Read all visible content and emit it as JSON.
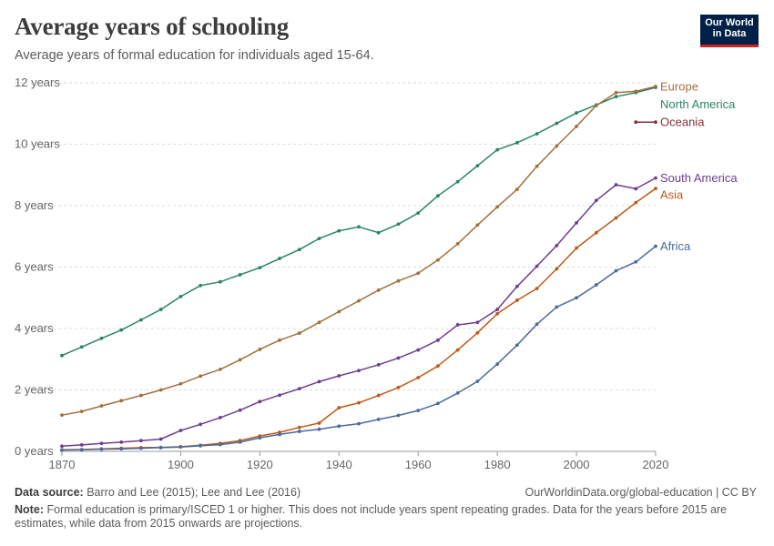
{
  "header": {
    "title": "Average years of schooling",
    "subtitle": "Average years of formal education for individuals aged 15-64."
  },
  "logo": {
    "line1": "Our World",
    "line2": "in Data"
  },
  "footer": {
    "source_label": "Data source:",
    "source_text": "Barro and Lee (2015); Lee and Lee (2016)",
    "url": "OurWorldinData.org/global-education | CC BY",
    "note_label": "Note:",
    "note_text": "Formal education is primary/ISCED 1 or higher. This does not include years spent repeating grades. Data for the years before 2015 are estimates, while data from 2015 onwards are projections."
  },
  "colors": {
    "europe": "#a2703c",
    "north_america": "#2b8465",
    "oceania": "#883039",
    "south_america": "#6d3e91",
    "asia": "#c05917",
    "africa": "#4c6a9c",
    "grid": "#dddddd",
    "axis": "#999999"
  },
  "chart_data": {
    "type": "line",
    "title": "Average years of schooling",
    "xlabel": "",
    "ylabel": "",
    "xlim": [
      1870,
      2020
    ],
    "ylim": [
      0,
      12
    ],
    "x_ticks": [
      1870,
      1900,
      1920,
      1940,
      1960,
      1980,
      2000,
      2020
    ],
    "y_ticks": [
      {
        "value": 0,
        "label": "0 years"
      },
      {
        "value": 2,
        "label": "2 years"
      },
      {
        "value": 4,
        "label": "4 years"
      },
      {
        "value": 6,
        "label": "6 years"
      },
      {
        "value": 8,
        "label": "8 years"
      },
      {
        "value": 10,
        "label": "10 years"
      },
      {
        "value": 12,
        "label": "12 years"
      }
    ],
    "grid": "horizontal dashed",
    "legend": "right, labels at line ends",
    "series": [
      {
        "name": "North America",
        "color_key": "north_america",
        "x": [
          1870,
          1875,
          1880,
          1885,
          1890,
          1895,
          1900,
          1905,
          1910,
          1915,
          1920,
          1925,
          1930,
          1935,
          1940,
          1945,
          1950,
          1955,
          1960,
          1965,
          1970,
          1975,
          1980,
          1985,
          1990,
          1995,
          2000,
          2005,
          2010,
          2015,
          2020
        ],
        "y": [
          3.12,
          3.4,
          3.68,
          3.95,
          4.28,
          4.62,
          5.04,
          5.4,
          5.52,
          5.75,
          5.98,
          6.28,
          6.57,
          6.93,
          7.18,
          7.31,
          7.12,
          7.4,
          7.76,
          8.32,
          8.78,
          9.3,
          9.82,
          10.05,
          10.34,
          10.68,
          11.02,
          11.28,
          11.55,
          11.68,
          11.85
        ]
      },
      {
        "name": "Europe",
        "color_key": "europe",
        "x": [
          1870,
          1875,
          1880,
          1885,
          1890,
          1895,
          1900,
          1905,
          1910,
          1915,
          1920,
          1925,
          1930,
          1935,
          1940,
          1945,
          1950,
          1955,
          1960,
          1965,
          1970,
          1975,
          1980,
          1985,
          1990,
          1995,
          2000,
          2005,
          2010,
          2015,
          2020
        ],
        "y": [
          1.18,
          1.3,
          1.48,
          1.65,
          1.82,
          2.0,
          2.2,
          2.45,
          2.67,
          2.98,
          3.32,
          3.62,
          3.85,
          4.2,
          4.55,
          4.9,
          5.25,
          5.55,
          5.8,
          6.23,
          6.76,
          7.37,
          7.96,
          8.53,
          9.28,
          9.94,
          10.58,
          11.26,
          11.68,
          11.72,
          11.88
        ]
      },
      {
        "name": "Oceania",
        "color_key": "oceania",
        "x": [
          2015,
          2020
        ],
        "y": [
          10.72,
          10.72
        ]
      },
      {
        "name": "South America",
        "color_key": "south_america",
        "x": [
          1870,
          1875,
          1880,
          1885,
          1890,
          1895,
          1900,
          1905,
          1910,
          1915,
          1920,
          1925,
          1930,
          1935,
          1940,
          1945,
          1950,
          1955,
          1960,
          1965,
          1970,
          1975,
          1980,
          1985,
          1990,
          1995,
          2000,
          2005,
          2010,
          2015,
          2020
        ],
        "y": [
          0.17,
          0.21,
          0.26,
          0.3,
          0.35,
          0.4,
          0.68,
          0.88,
          1.1,
          1.34,
          1.62,
          1.83,
          2.04,
          2.27,
          2.46,
          2.63,
          2.82,
          3.04,
          3.3,
          3.62,
          4.12,
          4.2,
          4.62,
          5.37,
          6.03,
          6.7,
          7.44,
          8.17,
          8.68,
          8.55,
          8.9
        ]
      },
      {
        "name": "Asia",
        "color_key": "asia",
        "x": [
          1870,
          1875,
          1880,
          1885,
          1890,
          1895,
          1900,
          1905,
          1910,
          1915,
          1920,
          1925,
          1930,
          1935,
          1940,
          1945,
          1950,
          1955,
          1960,
          1965,
          1970,
          1975,
          1980,
          1985,
          1990,
          1995,
          2000,
          2005,
          2010,
          2015,
          2020
        ],
        "y": [
          0.05,
          0.06,
          0.08,
          0.1,
          0.12,
          0.13,
          0.15,
          0.2,
          0.26,
          0.35,
          0.5,
          0.62,
          0.78,
          0.92,
          1.42,
          1.58,
          1.82,
          2.08,
          2.4,
          2.78,
          3.3,
          3.86,
          4.48,
          4.92,
          5.3,
          5.94,
          6.62,
          7.12,
          7.6,
          8.1,
          8.56
        ]
      },
      {
        "name": "Africa",
        "color_key": "africa",
        "x": [
          1870,
          1875,
          1880,
          1885,
          1890,
          1895,
          1900,
          1905,
          1910,
          1915,
          1920,
          1925,
          1930,
          1935,
          1940,
          1945,
          1950,
          1955,
          1960,
          1965,
          1970,
          1975,
          1980,
          1985,
          1990,
          1995,
          2000,
          2005,
          2010,
          2015,
          2020
        ],
        "y": [
          0.04,
          0.05,
          0.07,
          0.08,
          0.1,
          0.12,
          0.14,
          0.18,
          0.22,
          0.3,
          0.44,
          0.55,
          0.65,
          0.72,
          0.82,
          0.9,
          1.04,
          1.17,
          1.33,
          1.56,
          1.9,
          2.28,
          2.84,
          3.46,
          4.14,
          4.7,
          5.0,
          5.42,
          5.88,
          6.17,
          6.68
        ]
      }
    ]
  }
}
